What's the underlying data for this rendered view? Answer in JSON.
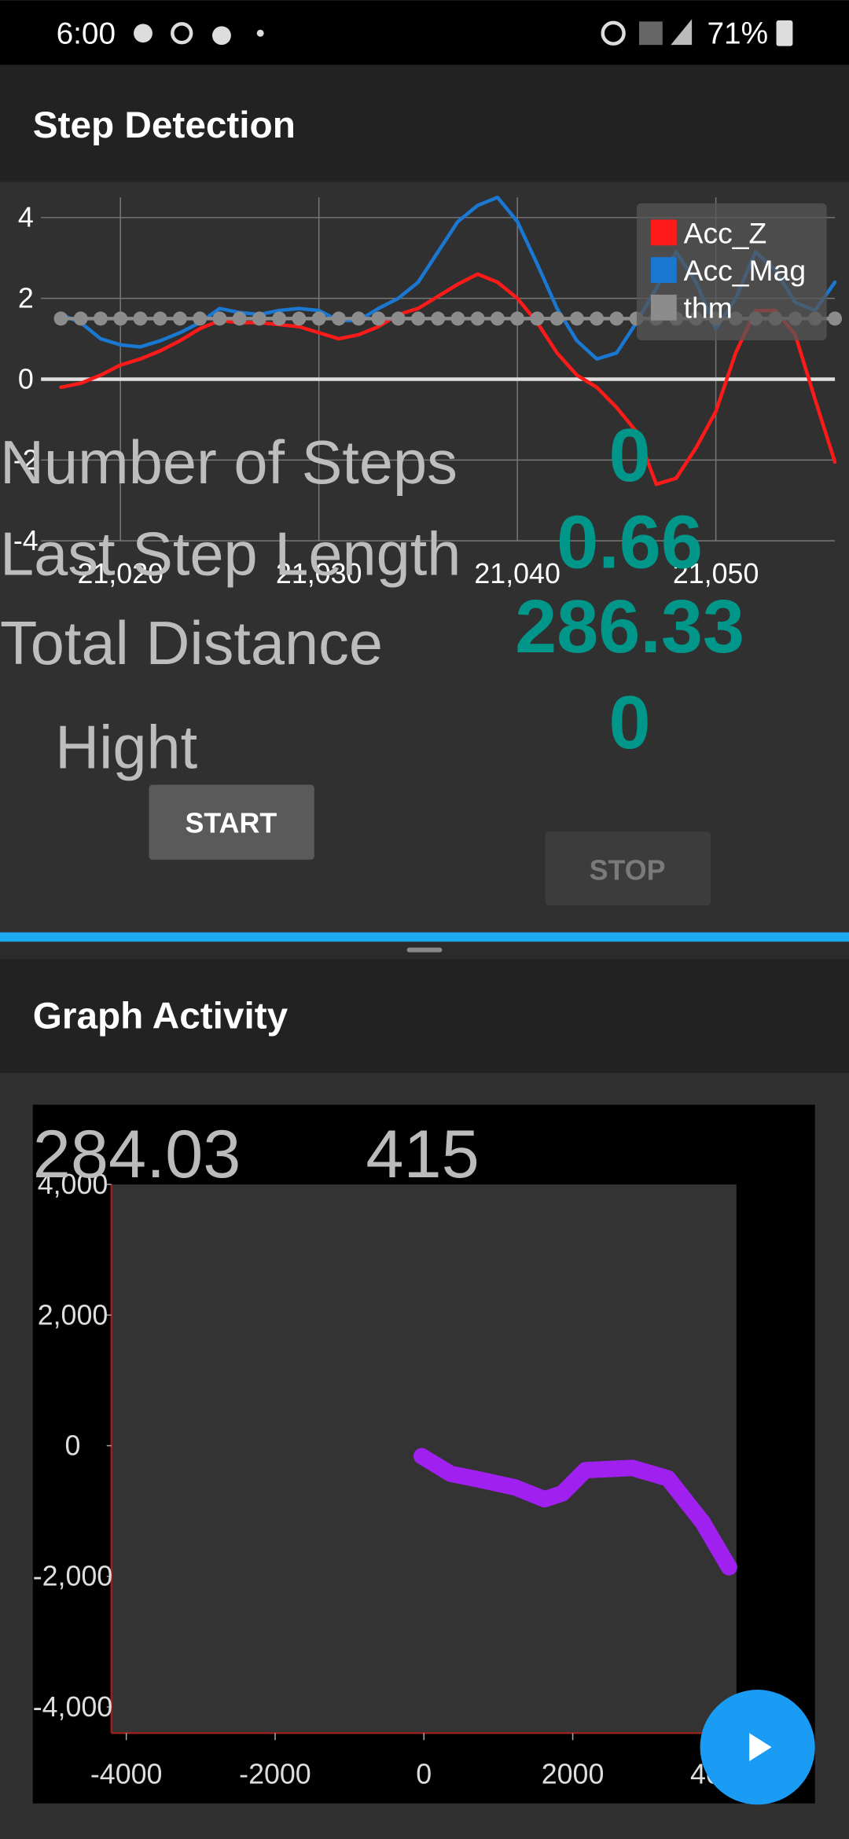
{
  "status_bar": {
    "time": "6:00",
    "battery": "71%"
  },
  "step_detection": {
    "title": "Step Detection",
    "stats": [
      {
        "label": "Number of Steps",
        "value": 0
      },
      {
        "label": "Last Step Length",
        "value": 0.66
      },
      {
        "label": "Total Distance",
        "value": 286.33
      },
      {
        "label": "Hight",
        "value": 0
      }
    ],
    "start_button": "START",
    "stop_button": "STOP"
  },
  "graph_activity": {
    "title": "Graph Activity",
    "readouts": [
      284.03,
      415
    ]
  },
  "chart_data": [
    {
      "type": "line",
      "x": [
        21017,
        21018,
        21019,
        21020,
        21021,
        21022,
        21023,
        21024,
        21025,
        21026,
        21027,
        21028,
        21029,
        21030,
        21031,
        21032,
        21033,
        21034,
        21035,
        21036,
        21037,
        21038,
        21039,
        21040,
        21041,
        21042,
        21043,
        21044,
        21045,
        21046,
        21047,
        21048,
        21049,
        21050,
        21051,
        21052,
        21053,
        21054,
        21055,
        21056
      ],
      "series": [
        {
          "name": "Acc_Z",
          "color": "#ff1a1a",
          "values": [
            -0.2,
            -0.1,
            0.1,
            0.35,
            0.5,
            0.7,
            0.95,
            1.25,
            1.45,
            1.4,
            1.4,
            1.35,
            1.3,
            1.15,
            1.0,
            1.1,
            1.3,
            1.6,
            1.75,
            2.05,
            2.35,
            2.6,
            2.4,
            2.0,
            1.4,
            0.65,
            0.1,
            -0.2,
            -0.7,
            -1.3,
            -2.6,
            -2.45,
            -1.7,
            -0.8,
            0.65,
            1.7,
            1.7,
            1.1,
            -0.5,
            -2.05
          ]
        },
        {
          "name": "Acc_Mag",
          "color": "#1a78d2",
          "values": [
            1.6,
            1.4,
            1.0,
            0.85,
            0.8,
            0.95,
            1.15,
            1.4,
            1.75,
            1.65,
            1.6,
            1.7,
            1.75,
            1.7,
            1.45,
            1.45,
            1.75,
            2.0,
            2.4,
            3.15,
            3.9,
            4.3,
            4.5,
            3.9,
            2.85,
            1.75,
            0.95,
            0.5,
            0.65,
            1.4,
            2.25,
            3.15,
            2.4,
            1.25,
            2.0,
            3.15,
            2.7,
            1.9,
            1.7,
            2.4
          ]
        },
        {
          "name": "thm",
          "color": "#8c8c8c",
          "markers": true,
          "values": [
            1.5,
            1.5,
            1.5,
            1.5,
            1.5,
            1.5,
            1.5,
            1.5,
            1.5,
            1.5,
            1.5,
            1.5,
            1.5,
            1.5,
            1.5,
            1.5,
            1.5,
            1.5,
            1.5,
            1.5,
            1.5,
            1.5,
            1.5,
            1.5,
            1.5,
            1.5,
            1.5,
            1.5,
            1.5,
            1.5,
            1.5,
            1.5,
            1.5,
            1.5,
            1.5,
            1.5,
            1.5,
            1.5,
            1.5,
            1.5
          ]
        }
      ],
      "xlim": [
        21016,
        21056
      ],
      "xticks": [
        {
          "value": 21020,
          "label": "21,020"
        },
        {
          "value": 21030,
          "label": "21,030"
        },
        {
          "value": 21040,
          "label": "21,040"
        },
        {
          "value": 21050,
          "label": "21,050"
        }
      ],
      "ylim": [
        -4,
        4.5
      ],
      "yticks": [
        4,
        2,
        0,
        -2,
        -4
      ],
      "grid": true,
      "legend": "top-right"
    },
    {
      "type": "line",
      "x": [
        -30,
        360,
        750,
        1230,
        1620,
        1860,
        2170,
        2800,
        3280,
        3750,
        4100
      ],
      "series": [
        {
          "color": "#a020f0",
          "values": [
            -160,
            -430,
            -520,
            -640,
            -820,
            -730,
            -375,
            -340,
            -500,
            -1180,
            -1860
          ]
        }
      ],
      "xlim": [
        -4200,
        4200
      ],
      "xticks": [
        -4000,
        -2000,
        0,
        2000,
        4000
      ],
      "ylim": [
        -4400,
        4000
      ],
      "yticks": [
        {
          "value": 4000,
          "label": "4,000"
        },
        {
          "value": 2000,
          "label": "2,000"
        },
        0,
        {
          "value": -2000,
          "label": "-2,000"
        },
        {
          "value": -4000,
          "label": "-4,000"
        }
      ],
      "grid": false
    }
  ]
}
